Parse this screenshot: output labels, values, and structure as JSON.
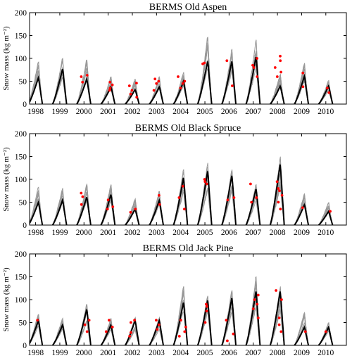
{
  "figure": {
    "ylabel": "Snow mass (kg m⁻²)",
    "ylim": [
      0,
      200
    ],
    "yticks": [
      0,
      50,
      100,
      150,
      200
    ],
    "xticks": [
      "1998",
      "1999",
      "2000",
      "2001",
      "2002",
      "2003",
      "2004",
      "2005",
      "2006",
      "2007",
      "2008",
      "2009",
      "2010"
    ],
    "colors": {
      "ensemble": "#999999",
      "model": "#000000",
      "observed": "#ff0000"
    }
  },
  "chart_data": [
    {
      "type": "line",
      "title": "BERMS Old Aspen",
      "ylabel": "Snow mass (kg m⁻²)",
      "ylim": [
        0,
        200
      ],
      "categories": [
        "1998",
        "1999",
        "2000",
        "2001",
        "2002",
        "2003",
        "2004",
        "2005",
        "2006",
        "2007",
        "2008",
        "2009",
        "2010"
      ],
      "series": [
        {
          "values": [
            58,
            78,
            55,
            38,
            32,
            38,
            50,
            95,
            95,
            105,
            40,
            62,
            40
          ]
        },
        {
          "values": [
            95,
            100,
            100,
            60,
            55,
            60,
            70,
            148,
            120,
            140,
            65,
            90,
            55
          ]
        }
      ],
      "points": [
        [
          2000,
          60
        ],
        [
          2000,
          63
        ],
        [
          2000,
          48
        ],
        [
          2001,
          48
        ],
        [
          2001,
          42
        ],
        [
          2001,
          35
        ],
        [
          2001,
          30
        ],
        [
          2002,
          46
        ],
        [
          2002,
          40
        ],
        [
          2002,
          30
        ],
        [
          2002,
          22
        ],
        [
          2002,
          15
        ],
        [
          2003,
          45
        ],
        [
          2003,
          55
        ],
        [
          2003,
          50
        ],
        [
          2003,
          30
        ],
        [
          2004,
          35
        ],
        [
          2004,
          45
        ],
        [
          2004,
          50
        ],
        [
          2004,
          60
        ],
        [
          2005,
          90
        ],
        [
          2005,
          88
        ],
        [
          2006,
          40
        ],
        [
          2006,
          95
        ],
        [
          2007,
          85
        ],
        [
          2007,
          100
        ],
        [
          2007,
          80
        ],
        [
          2007,
          60
        ],
        [
          2008,
          105
        ],
        [
          2008,
          95
        ],
        [
          2008,
          80
        ],
        [
          2008,
          70
        ],
        [
          2008,
          60
        ],
        [
          2009,
          38
        ],
        [
          2009,
          68
        ],
        [
          2010,
          25
        ],
        [
          2010,
          35
        ]
      ]
    },
    {
      "type": "line",
      "title": "BERMS Old Black Spruce",
      "ylabel": "Snow mass (kg m⁻²)",
      "ylim": [
        0,
        200
      ],
      "categories": [
        "1998",
        "1999",
        "2000",
        "2001",
        "2002",
        "2003",
        "2004",
        "2005",
        "2006",
        "2007",
        "2008",
        "2009",
        "2010"
      ],
      "series": [
        {
          "values": [
            50,
            55,
            62,
            68,
            35,
            55,
            105,
            120,
            110,
            80,
            135,
            45,
            30
          ]
        },
        {
          "values": [
            85,
            90,
            95,
            90,
            65,
            75,
            130,
            135,
            120,
            95,
            155,
            75,
            50
          ]
        }
      ],
      "points": [
        [
          2000,
          62
        ],
        [
          2000,
          70
        ],
        [
          2000,
          45
        ],
        [
          2001,
          55
        ],
        [
          2001,
          40
        ],
        [
          2001,
          35
        ],
        [
          2002,
          35
        ],
        [
          2002,
          28
        ],
        [
          2003,
          65
        ],
        [
          2003,
          45
        ],
        [
          2004,
          60
        ],
        [
          2004,
          85
        ],
        [
          2004,
          35
        ],
        [
          2005,
          95
        ],
        [
          2005,
          90
        ],
        [
          2005,
          100
        ],
        [
          2006,
          55
        ],
        [
          2006,
          60
        ],
        [
          2007,
          60
        ],
        [
          2007,
          90
        ],
        [
          2007,
          50
        ],
        [
          2008,
          80
        ],
        [
          2008,
          95
        ],
        [
          2008,
          75
        ],
        [
          2008,
          65
        ],
        [
          2008,
          50
        ],
        [
          2008,
          35
        ],
        [
          2009,
          38
        ],
        [
          2010,
          30
        ]
      ]
    },
    {
      "type": "line",
      "title": "BERMS Old Jack Pine",
      "ylabel": "Snow mass (kg m⁻²)",
      "ylim": [
        0,
        200
      ],
      "categories": [
        "1998",
        "1999",
        "2000",
        "2001",
        "2002",
        "2003",
        "2004",
        "2005",
        "2006",
        "2007",
        "2008",
        "2009",
        "2010"
      ],
      "series": [
        {
          "values": [
            55,
            45,
            80,
            45,
            55,
            55,
            95,
            100,
            105,
            120,
            120,
            40,
            40
          ]
        },
        {
          "values": [
            70,
            60,
            90,
            60,
            60,
            60,
            135,
            120,
            120,
            150,
            130,
            70,
            50
          ]
        }
      ],
      "points": [
        [
          1998,
          55
        ],
        [
          2000,
          45
        ],
        [
          2000,
          55
        ],
        [
          2000,
          30
        ],
        [
          2001,
          55
        ],
        [
          2001,
          40
        ],
        [
          2001,
          30
        ],
        [
          2002,
          50
        ],
        [
          2002,
          55
        ],
        [
          2002,
          28
        ],
        [
          2002,
          20
        ],
        [
          2003,
          45
        ],
        [
          2003,
          55
        ],
        [
          2003,
          35
        ],
        [
          2004,
          55
        ],
        [
          2004,
          40
        ],
        [
          2004,
          30
        ],
        [
          2004,
          20
        ],
        [
          2005,
          90
        ],
        [
          2005,
          85
        ],
        [
          2005,
          75
        ],
        [
          2005,
          50
        ],
        [
          2006,
          10
        ],
        [
          2006,
          25
        ],
        [
          2006,
          55
        ],
        [
          2007,
          110
        ],
        [
          2007,
          100
        ],
        [
          2007,
          90
        ],
        [
          2007,
          80
        ],
        [
          2007,
          60
        ],
        [
          2008,
          120
        ],
        [
          2008,
          100
        ],
        [
          2008,
          60
        ],
        [
          2008,
          45
        ],
        [
          2008,
          30
        ],
        [
          2009,
          30
        ],
        [
          2010,
          30
        ]
      ]
    }
  ]
}
